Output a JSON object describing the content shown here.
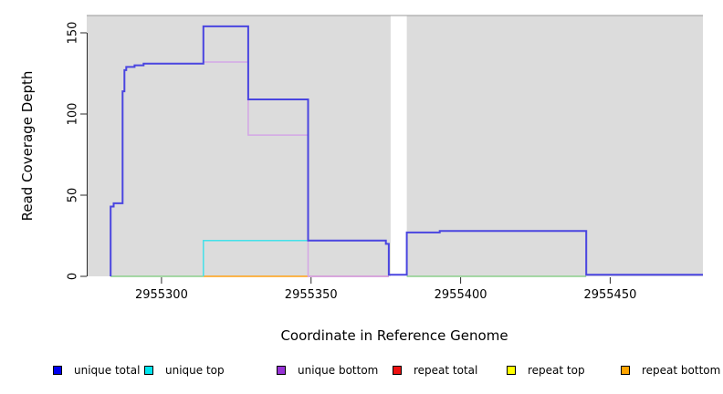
{
  "figure": {
    "x_axis_title": "Coordinate in Reference Genome",
    "y_axis_title": "Read Coverage Depth"
  },
  "legend": {
    "items": [
      {
        "label": "unique total",
        "color": "#0000ee"
      },
      {
        "label": "unique top",
        "color": "#00e5ee"
      },
      {
        "label": "unique bottom",
        "color": "#9733d6"
      },
      {
        "label": "repeat total",
        "color": "#ee1111"
      },
      {
        "label": "repeat top",
        "color": "#ffff00"
      },
      {
        "label": "repeat bottom",
        "color": "#ffa500"
      }
    ]
  },
  "chart_data": {
    "type": "line",
    "step": true,
    "title": "",
    "xlabel": "Coordinate in Reference Genome",
    "ylabel": "Read Coverage Depth",
    "x_ticks": [
      "2955300",
      "2955350",
      "2955400",
      "2955450"
    ],
    "x_tick_values": [
      2955300,
      2955350,
      2955400,
      2955450
    ],
    "y_ticks": [
      "0",
      "50",
      "100",
      "150"
    ],
    "y_tick_values": [
      0,
      50,
      100,
      150
    ],
    "xlim": [
      2955275,
      2955481
    ],
    "ylim": [
      0,
      160
    ],
    "grid": false,
    "legend_position": "bottom",
    "panel_background": "#dcdcdc",
    "masked_region": {
      "x_start": 2955376.6,
      "x_end": 2955382,
      "color": "#ffffff"
    },
    "series": [
      {
        "name": "baseline-left",
        "color": "#8cce8c",
        "width": 1.5,
        "points": [
          [
            2955283,
            0
          ],
          [
            2955314,
            0
          ]
        ]
      },
      {
        "name": "baseline-right",
        "color": "#8cce8c",
        "width": 1.5,
        "points": [
          [
            2955382,
            0
          ],
          [
            2955442,
            0
          ]
        ]
      },
      {
        "name": "repeat bottom",
        "color": "#ffa013",
        "width": 1.5,
        "points": [
          [
            2955314,
            0
          ],
          [
            2955349,
            0
          ]
        ]
      },
      {
        "name": "repeat total",
        "color": "#d4608a",
        "width": 1.5,
        "points": [
          [
            2955349,
            0
          ],
          [
            2955376,
            0
          ]
        ]
      },
      {
        "name": "unique top",
        "color": "#45e1e9",
        "width": 1.5,
        "points": [
          [
            2955314,
            0
          ],
          [
            2955314,
            22
          ],
          [
            2955349,
            22
          ]
        ]
      },
      {
        "name": "unique bottom",
        "color": "#d4a6e6",
        "width": 1.5,
        "points": [
          [
            2955314,
            132
          ],
          [
            2955329,
            132
          ],
          [
            2955329,
            87
          ],
          [
            2955349,
            87
          ],
          [
            2955349,
            0
          ],
          [
            2955376,
            0
          ]
        ]
      },
      {
        "name": "unique total",
        "color": "#4a45e0",
        "width": 2,
        "points": [
          [
            2955283,
            0
          ],
          [
            2955283,
            43
          ],
          [
            2955284,
            43
          ],
          [
            2955284,
            45
          ],
          [
            2955287,
            45
          ],
          [
            2955287,
            114
          ],
          [
            2955287.6,
            114
          ],
          [
            2955287.6,
            127
          ],
          [
            2955288.2,
            127
          ],
          [
            2955288.2,
            129
          ],
          [
            2955291,
            129
          ],
          [
            2955291,
            130
          ],
          [
            2955294,
            130
          ],
          [
            2955294,
            131
          ],
          [
            2955314,
            131
          ],
          [
            2955314,
            154
          ],
          [
            2955329,
            154
          ],
          [
            2955329,
            109
          ],
          [
            2955349,
            109
          ],
          [
            2955349,
            22
          ],
          [
            2955375,
            22
          ],
          [
            2955375,
            20
          ],
          [
            2955376,
            20
          ],
          [
            2955376,
            1
          ],
          [
            2955382,
            1
          ],
          [
            2955382,
            27
          ],
          [
            2955393,
            27
          ],
          [
            2955393,
            28
          ],
          [
            2955442,
            28
          ],
          [
            2955442,
            1
          ],
          [
            2955481,
            1
          ]
        ]
      }
    ]
  }
}
